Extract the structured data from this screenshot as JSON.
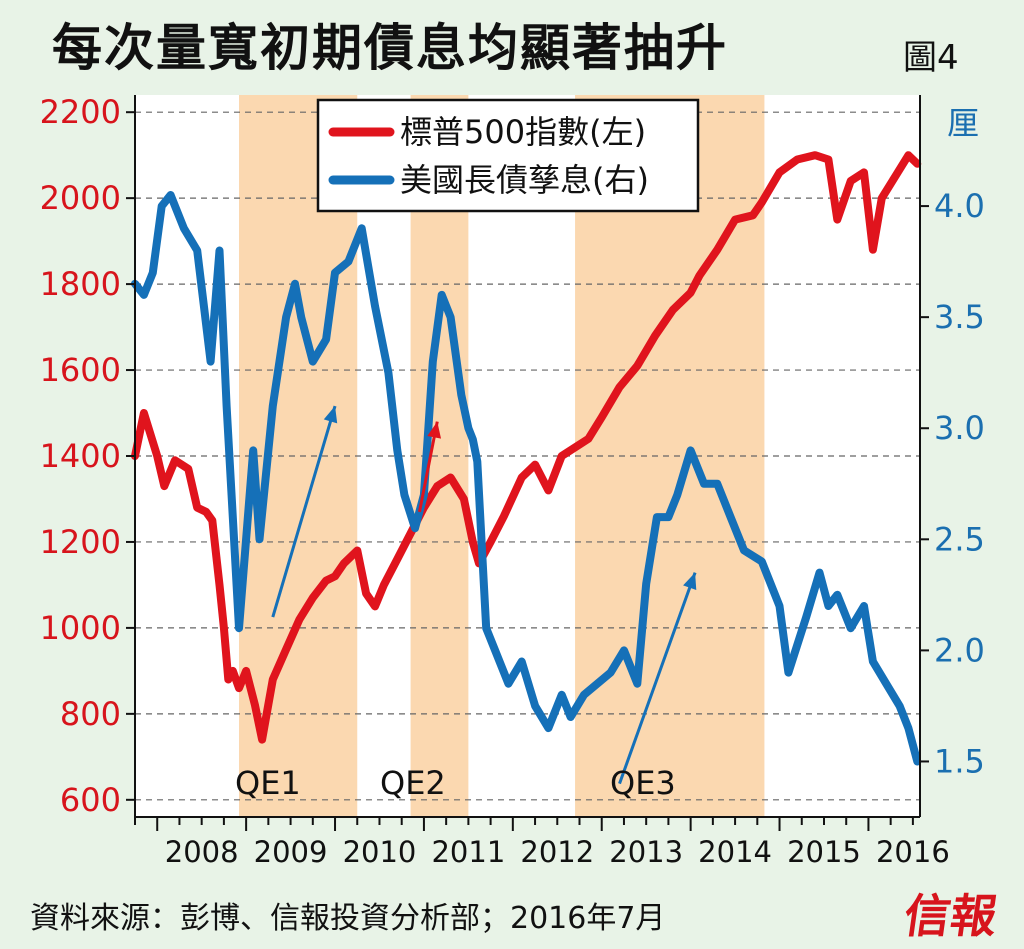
{
  "title": "每次量寬初期債息均顯著抽升",
  "figure_label": "圖4",
  "source": "資料來源：彭博、信報投資分析部；2016年7月",
  "brand": "信報",
  "colors": {
    "sp500": "#e0141d",
    "yield": "#1570b8",
    "qe_band": "#fbd8b0",
    "plot_bg": "#ffffff",
    "page_bg": "#e8f3e7"
  },
  "chart_data": {
    "type": "line",
    "title": "每次量寬初期債息均顯著抽升",
    "right_axis_unit": "厘",
    "x_tick_labels": [
      "2008",
      "2009",
      "2010",
      "2011",
      "2012",
      "2013",
      "2014",
      "2015",
      "2016"
    ],
    "left_axis": {
      "ticks": [
        600,
        800,
        1000,
        1200,
        1400,
        1600,
        1800,
        2000,
        2200
      ],
      "range": [
        560,
        2240
      ]
    },
    "right_axis": {
      "ticks": [
        "1.5",
        "2.0",
        "2.5",
        "3.0",
        "3.5",
        "4.0"
      ],
      "range": [
        1.25,
        4.5
      ]
    },
    "grid": true,
    "legend": {
      "position": "top-center",
      "entries": [
        "標普500指數(左)",
        "美國長債孳息(右)"
      ]
    },
    "shaded_periods": [
      {
        "label": "QE1",
        "start": 2008.92,
        "end": 2010.25
      },
      {
        "label": "QE2",
        "start": 2010.85,
        "end": 2011.5
      },
      {
        "label": "QE3",
        "start": 2012.7,
        "end": 2014.83
      }
    ],
    "annotations": [
      {
        "label": "QE1",
        "arrow_from": [
          2009.3,
          2.15
        ],
        "arrow_to": [
          2010.0,
          3.1
        ],
        "axis": "right"
      },
      {
        "label": "QE2",
        "arrow_from": [
          2010.95,
          1270
        ],
        "arrow_to": [
          2011.15,
          1480
        ],
        "axis": "left"
      },
      {
        "label": "QE3",
        "arrow_from": [
          2013.2,
          1.4
        ],
        "arrow_to": [
          2014.05,
          2.35
        ],
        "axis": "right"
      }
    ],
    "series": [
      {
        "name": "標普500指數(左)",
        "axis": "left",
        "x": [
          2007.75,
          2007.85,
          2008.0,
          2008.08,
          2008.2,
          2008.35,
          2008.45,
          2008.55,
          2008.62,
          2008.7,
          2008.75,
          2008.8,
          2008.85,
          2008.92,
          2009.0,
          2009.1,
          2009.18,
          2009.3,
          2009.45,
          2009.6,
          2009.75,
          2009.9,
          2010.0,
          2010.1,
          2010.25,
          2010.35,
          2010.45,
          2010.55,
          2010.7,
          2010.85,
          2011.0,
          2011.15,
          2011.3,
          2011.45,
          2011.55,
          2011.62,
          2011.75,
          2011.9,
          2012.1,
          2012.25,
          2012.4,
          2012.55,
          2012.7,
          2012.85,
          2013.0,
          2013.2,
          2013.4,
          2013.6,
          2013.8,
          2014.0,
          2014.1,
          2014.3,
          2014.5,
          2014.7,
          2014.8,
          2015.0,
          2015.2,
          2015.4,
          2015.55,
          2015.65,
          2015.8,
          2015.95,
          2016.05,
          2016.15,
          2016.3,
          2016.45,
          2016.55
        ],
        "values": [
          1400,
          1500,
          1400,
          1330,
          1390,
          1370,
          1280,
          1270,
          1250,
          1100,
          1000,
          880,
          900,
          860,
          900,
          820,
          740,
          880,
          950,
          1020,
          1070,
          1110,
          1120,
          1150,
          1180,
          1080,
          1050,
          1100,
          1160,
          1220,
          1280,
          1330,
          1350,
          1300,
          1200,
          1150,
          1200,
          1260,
          1350,
          1380,
          1320,
          1400,
          1420,
          1440,
          1490,
          1560,
          1610,
          1680,
          1740,
          1780,
          1820,
          1880,
          1950,
          1960,
          1990,
          2060,
          2090,
          2100,
          2090,
          1950,
          2040,
          2060,
          1880,
          2000,
          2050,
          2100,
          2080
        ]
      },
      {
        "name": "美國長債孳息(右)",
        "axis": "right",
        "x": [
          2007.75,
          2007.85,
          2007.95,
          2008.05,
          2008.15,
          2008.3,
          2008.45,
          2008.6,
          2008.7,
          2008.78,
          2008.85,
          2008.92,
          2009.0,
          2009.08,
          2009.15,
          2009.3,
          2009.45,
          2009.55,
          2009.62,
          2009.75,
          2009.9,
          2010.0,
          2010.15,
          2010.3,
          2010.45,
          2010.6,
          2010.7,
          2010.78,
          2010.9,
          2011.0,
          2011.1,
          2011.2,
          2011.3,
          2011.42,
          2011.5,
          2011.55,
          2011.6,
          2011.7,
          2011.8,
          2011.95,
          2012.1,
          2012.25,
          2012.4,
          2012.55,
          2012.65,
          2012.8,
          2012.95,
          2013.1,
          2013.25,
          2013.4,
          2013.5,
          2013.62,
          2013.75,
          2013.85,
          2014.0,
          2014.15,
          2014.3,
          2014.45,
          2014.6,
          2014.8,
          2015.0,
          2015.1,
          2015.3,
          2015.45,
          2015.55,
          2015.65,
          2015.8,
          2015.95,
          2016.05,
          2016.2,
          2016.35,
          2016.45,
          2016.55
        ],
        "values": [
          3.65,
          3.6,
          3.7,
          4.0,
          4.05,
          3.9,
          3.8,
          3.3,
          3.8,
          3.1,
          2.6,
          2.1,
          2.5,
          2.9,
          2.5,
          3.1,
          3.5,
          3.65,
          3.5,
          3.3,
          3.4,
          3.7,
          3.75,
          3.9,
          3.55,
          3.25,
          2.9,
          2.7,
          2.55,
          2.7,
          3.3,
          3.6,
          3.5,
          3.15,
          3.0,
          2.95,
          2.85,
          2.1,
          2.0,
          1.85,
          1.95,
          1.75,
          1.65,
          1.8,
          1.7,
          1.8,
          1.85,
          1.9,
          2.0,
          1.85,
          2.3,
          2.6,
          2.6,
          2.7,
          2.9,
          2.75,
          2.75,
          2.6,
          2.45,
          2.4,
          2.2,
          1.9,
          2.15,
          2.35,
          2.2,
          2.25,
          2.1,
          2.2,
          1.95,
          1.85,
          1.75,
          1.65,
          1.5
        ]
      }
    ]
  }
}
